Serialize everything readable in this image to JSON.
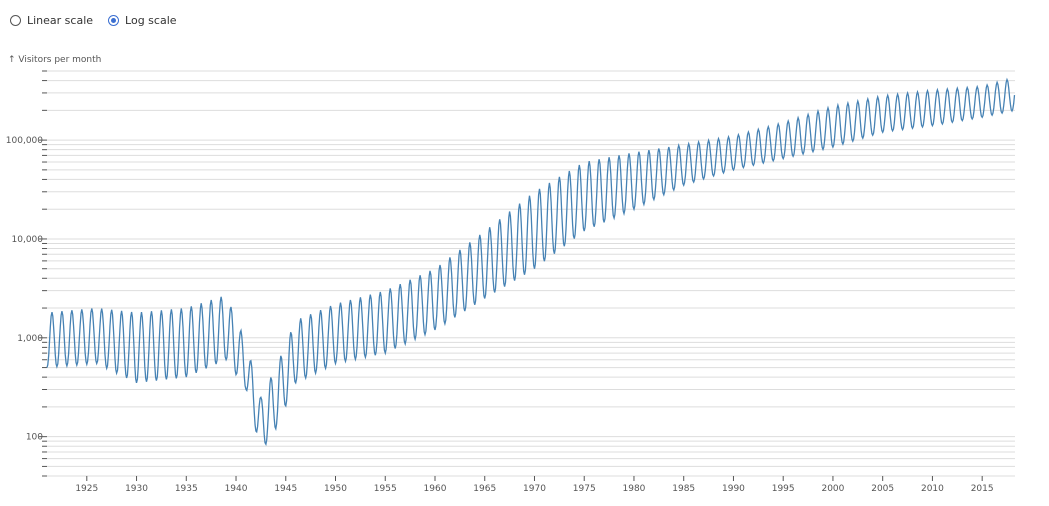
{
  "scale_toggle": {
    "options": [
      {
        "label": "Linear scale",
        "selected": false
      },
      {
        "label": "Log scale",
        "selected": true
      }
    ]
  },
  "colors": {
    "line": "#4682b4",
    "grid": "#dddddd",
    "axis": "#555555",
    "radio_selected": "#3b6fd1"
  },
  "chart_data": {
    "type": "line",
    "title": "",
    "ylabel": "↑ Visitors per month",
    "xlabel": "",
    "yscale": "log",
    "grid": true,
    "xlim": [
      1921.0,
      2018.3
    ],
    "ylim": [
      40,
      500000
    ],
    "x_ticks": [
      "1925",
      "1930",
      "1935",
      "1940",
      "1945",
      "1950",
      "1955",
      "1960",
      "1965",
      "1970",
      "1975",
      "1980",
      "1985",
      "1990",
      "1995",
      "2000",
      "2005",
      "2010",
      "2015"
    ],
    "y_ticks": [
      "100",
      "1,000",
      "10,000",
      "100,000"
    ],
    "series": [
      {
        "trough": [
          [
            1921,
            500
          ],
          [
            1926,
            550
          ],
          [
            1930,
            350
          ],
          [
            1935,
            400
          ],
          [
            1939,
            600
          ],
          [
            1941,
            300
          ],
          [
            1942.5,
            70
          ],
          [
            1944,
            120
          ],
          [
            1946,
            350
          ],
          [
            1950,
            550
          ],
          [
            1955,
            700
          ],
          [
            1960,
            1200
          ],
          [
            1965,
            2500
          ],
          [
            1970,
            5000
          ],
          [
            1975,
            12000
          ],
          [
            1980,
            20000
          ],
          [
            1985,
            35000
          ],
          [
            1990,
            50000
          ],
          [
            1995,
            65000
          ],
          [
            2000,
            85000
          ],
          [
            2005,
            120000
          ],
          [
            2010,
            140000
          ],
          [
            2015,
            170000
          ],
          [
            2018.3,
            200000
          ]
        ],
        "peak": [
          [
            1921,
            1800
          ],
          [
            1926,
            2000
          ],
          [
            1930,
            1800
          ],
          [
            1935,
            2000
          ],
          [
            1939,
            2700
          ],
          [
            1941,
            900
          ],
          [
            1942.5,
            250
          ],
          [
            1944,
            500
          ],
          [
            1946,
            1500
          ],
          [
            1950,
            2200
          ],
          [
            1955,
            3000
          ],
          [
            1960,
            5000
          ],
          [
            1965,
            12000
          ],
          [
            1970,
            30000
          ],
          [
            1975,
            60000
          ],
          [
            1980,
            75000
          ],
          [
            1985,
            90000
          ],
          [
            1990,
            110000
          ],
          [
            1995,
            150000
          ],
          [
            2000,
            220000
          ],
          [
            2005,
            280000
          ],
          [
            2010,
            320000
          ],
          [
            2015,
            350000
          ],
          [
            2018.3,
            430000
          ]
        ]
      }
    ]
  }
}
